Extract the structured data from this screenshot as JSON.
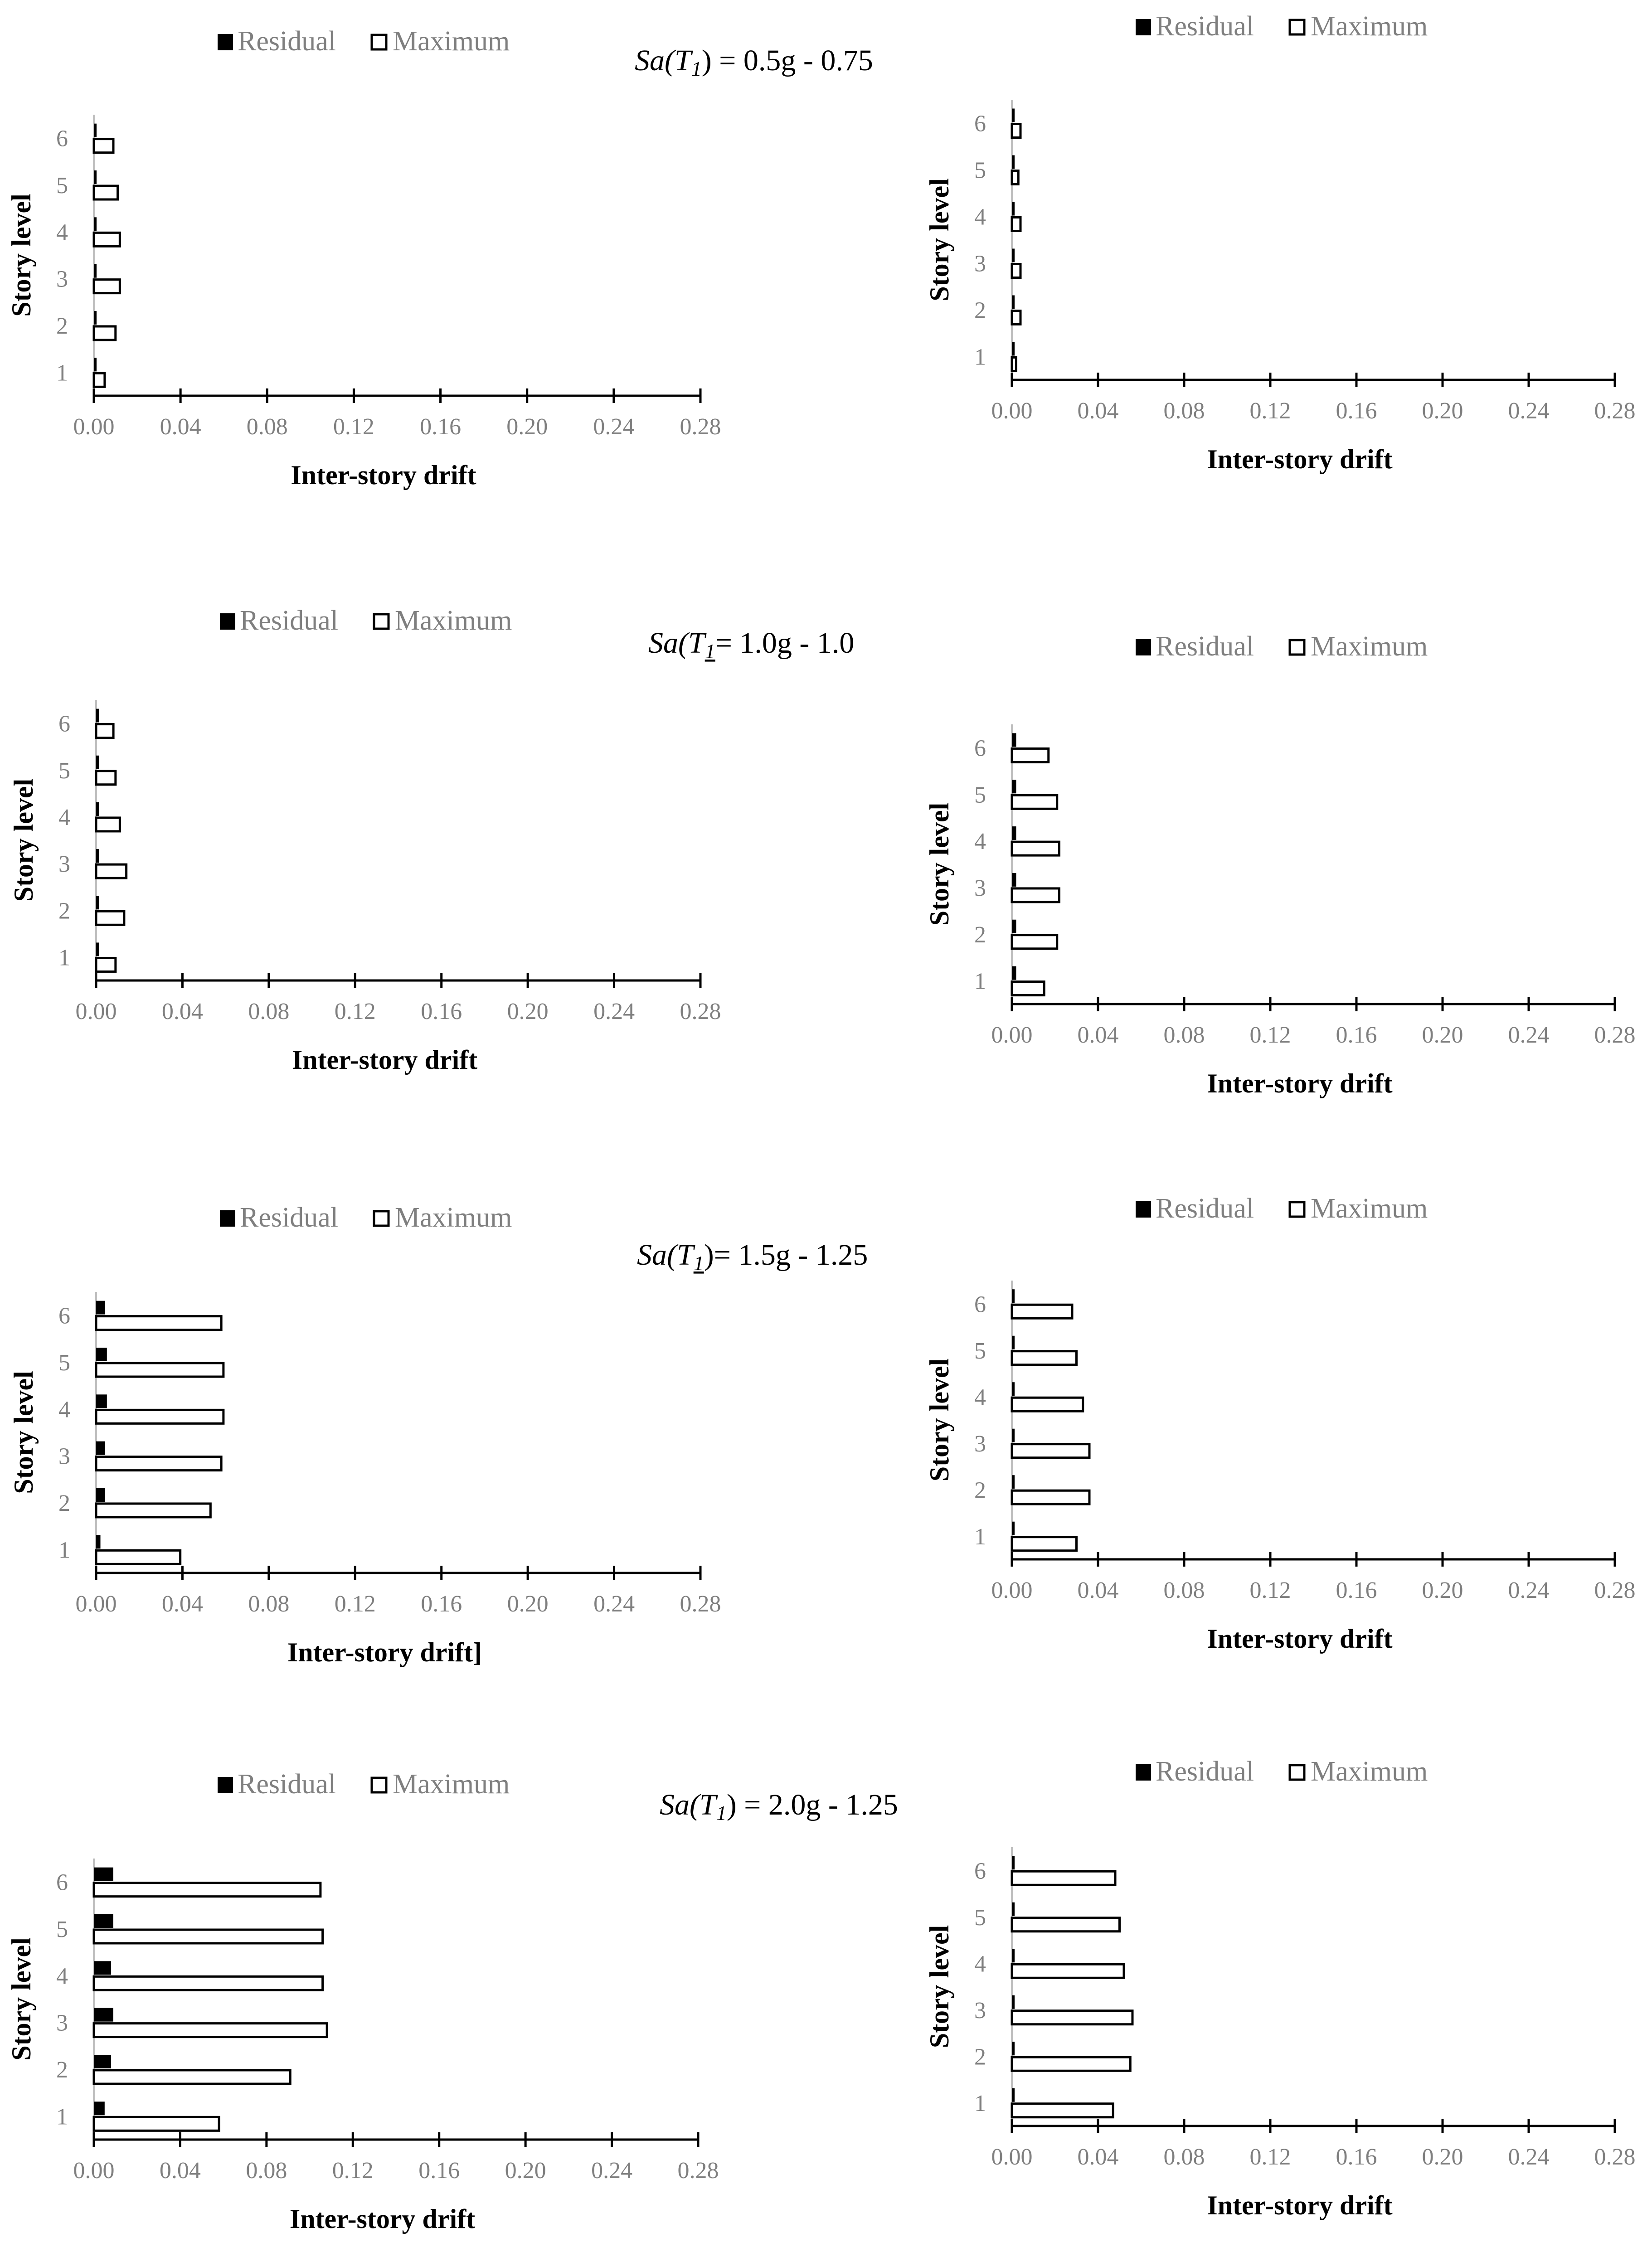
{
  "legend": {
    "residual": "Residual",
    "maximum": "Maximum"
  },
  "captions": [
    {
      "pre": "Sa(T",
      "sub": "1",
      "post": ") = 0.5g - 0.75"
    },
    {
      "pre": "Sa(T",
      "sub": "1",
      "post": "= 1.0g - 1.0"
    },
    {
      "pre": "Sa(T",
      "sub": "1",
      "post": ")= 1.5g - 1.25"
    },
    {
      "pre": "Sa(T",
      "sub": "1",
      "post": ") = 2.0g - 1.25"
    }
  ],
  "chart_data": [
    {
      "type": "bar",
      "orientation": "horizontal",
      "categories": [
        "1",
        "2",
        "3",
        "4",
        "5",
        "6"
      ],
      "xlabel": "Inter-story drift",
      "ylabel": "Story level",
      "xlim": [
        0,
        0.28
      ],
      "x_ticks": [
        "0.00",
        "0.04",
        "0.08",
        "0.12",
        "0.16",
        "0.20",
        "0.24",
        "0.28"
      ],
      "series": [
        {
          "name": "Residual",
          "values": [
            0.0,
            0.0,
            0.0,
            0.0,
            0.0,
            0.0
          ]
        },
        {
          "name": "Maximum",
          "values": [
            0.005,
            0.01,
            0.012,
            0.012,
            0.011,
            0.009
          ]
        }
      ]
    },
    {
      "type": "bar",
      "orientation": "horizontal",
      "categories": [
        "1",
        "2",
        "3",
        "4",
        "5",
        "6"
      ],
      "xlabel": "Inter-story drift",
      "ylabel": "Story level",
      "xlim": [
        0,
        0.28
      ],
      "x_ticks": [
        "0.00",
        "0.04",
        "0.08",
        "0.12",
        "0.16",
        "0.20",
        "0.24",
        "0.28"
      ],
      "series": [
        {
          "name": "Residual",
          "values": [
            0.0,
            0.0,
            0.0,
            0.0,
            0.0,
            0.0
          ]
        },
        {
          "name": "Maximum",
          "values": [
            0.002,
            0.004,
            0.004,
            0.004,
            0.003,
            0.004
          ]
        }
      ]
    },
    {
      "type": "bar",
      "orientation": "horizontal",
      "categories": [
        "1",
        "2",
        "3",
        "4",
        "5",
        "6"
      ],
      "xlabel": "Inter-story drift",
      "ylabel": "Story level",
      "xlim": [
        0,
        0.28
      ],
      "x_ticks": [
        "0.00",
        "0.04",
        "0.08",
        "0.12",
        "0.16",
        "0.20",
        "0.24",
        "0.28"
      ],
      "series": [
        {
          "name": "Residual",
          "values": [
            0.0,
            0.0,
            0.0,
            0.0,
            0.0,
            0.0
          ]
        },
        {
          "name": "Maximum",
          "values": [
            0.009,
            0.013,
            0.014,
            0.011,
            0.009,
            0.008
          ]
        }
      ]
    },
    {
      "type": "bar",
      "orientation": "horizontal",
      "categories": [
        "1",
        "2",
        "3",
        "4",
        "5",
        "6"
      ],
      "xlabel": "Inter-story drift",
      "ylabel": "Story level",
      "xlim": [
        0,
        0.28
      ],
      "x_ticks": [
        "0.00",
        "0.04",
        "0.08",
        "0.12",
        "0.16",
        "0.20",
        "0.24",
        "0.28"
      ],
      "series": [
        {
          "name": "Residual",
          "values": [
            0.002,
            0.002,
            0.002,
            0.002,
            0.002,
            0.002
          ]
        },
        {
          "name": "Maximum",
          "values": [
            0.015,
            0.021,
            0.022,
            0.022,
            0.021,
            0.017
          ]
        }
      ]
    },
    {
      "type": "bar",
      "orientation": "horizontal",
      "categories": [
        "1",
        "2",
        "3",
        "4",
        "5",
        "6"
      ],
      "xlabel": "Inter-story drift]",
      "ylabel": "Story level",
      "xlim": [
        0,
        0.28
      ],
      "x_ticks": [
        "0.00",
        "0.04",
        "0.08",
        "0.12",
        "0.16",
        "0.20",
        "0.24",
        "0.28"
      ],
      "series": [
        {
          "name": "Residual",
          "values": [
            0.002,
            0.004,
            0.004,
            0.005,
            0.005,
            0.004
          ]
        },
        {
          "name": "Maximum",
          "values": [
            0.039,
            0.053,
            0.058,
            0.059,
            0.059,
            0.058
          ]
        }
      ]
    },
    {
      "type": "bar",
      "orientation": "horizontal",
      "categories": [
        "1",
        "2",
        "3",
        "4",
        "5",
        "6"
      ],
      "xlabel": "Inter-story drift",
      "ylabel": "Story level",
      "xlim": [
        0,
        0.28
      ],
      "x_ticks": [
        "0.00",
        "0.04",
        "0.08",
        "0.12",
        "0.16",
        "0.20",
        "0.24",
        "0.28"
      ],
      "series": [
        {
          "name": "Residual",
          "values": [
            0.0,
            0.0,
            0.0,
            0.0,
            0.0,
            0.0
          ]
        },
        {
          "name": "Maximum",
          "values": [
            0.03,
            0.036,
            0.036,
            0.033,
            0.03,
            0.028
          ]
        }
      ]
    },
    {
      "type": "bar",
      "orientation": "horizontal",
      "categories": [
        "1",
        "2",
        "3",
        "4",
        "5",
        "6"
      ],
      "xlabel": "Inter-story drift",
      "ylabel": "Story level",
      "xlim": [
        0,
        0.28
      ],
      "x_ticks": [
        "0.00",
        "0.04",
        "0.08",
        "0.12",
        "0.16",
        "0.20",
        "0.24",
        "0.28"
      ],
      "series": [
        {
          "name": "Residual",
          "values": [
            0.005,
            0.008,
            0.009,
            0.008,
            0.009,
            0.009
          ]
        },
        {
          "name": "Maximum",
          "values": [
            0.058,
            0.091,
            0.108,
            0.106,
            0.106,
            0.105
          ]
        }
      ]
    },
    {
      "type": "bar",
      "orientation": "horizontal",
      "categories": [
        "1",
        "2",
        "3",
        "4",
        "5",
        "6"
      ],
      "xlabel": "Inter-story drift",
      "ylabel": "Story level",
      "xlim": [
        0,
        0.28
      ],
      "x_ticks": [
        "0.00",
        "0.04",
        "0.08",
        "0.12",
        "0.16",
        "0.20",
        "0.24",
        "0.28"
      ],
      "series": [
        {
          "name": "Residual",
          "values": [
            0.001,
            0.001,
            0.001,
            0.001,
            0.001,
            0.001
          ]
        },
        {
          "name": "Maximum",
          "values": [
            0.047,
            0.055,
            0.056,
            0.052,
            0.05,
            0.048
          ]
        }
      ]
    }
  ]
}
